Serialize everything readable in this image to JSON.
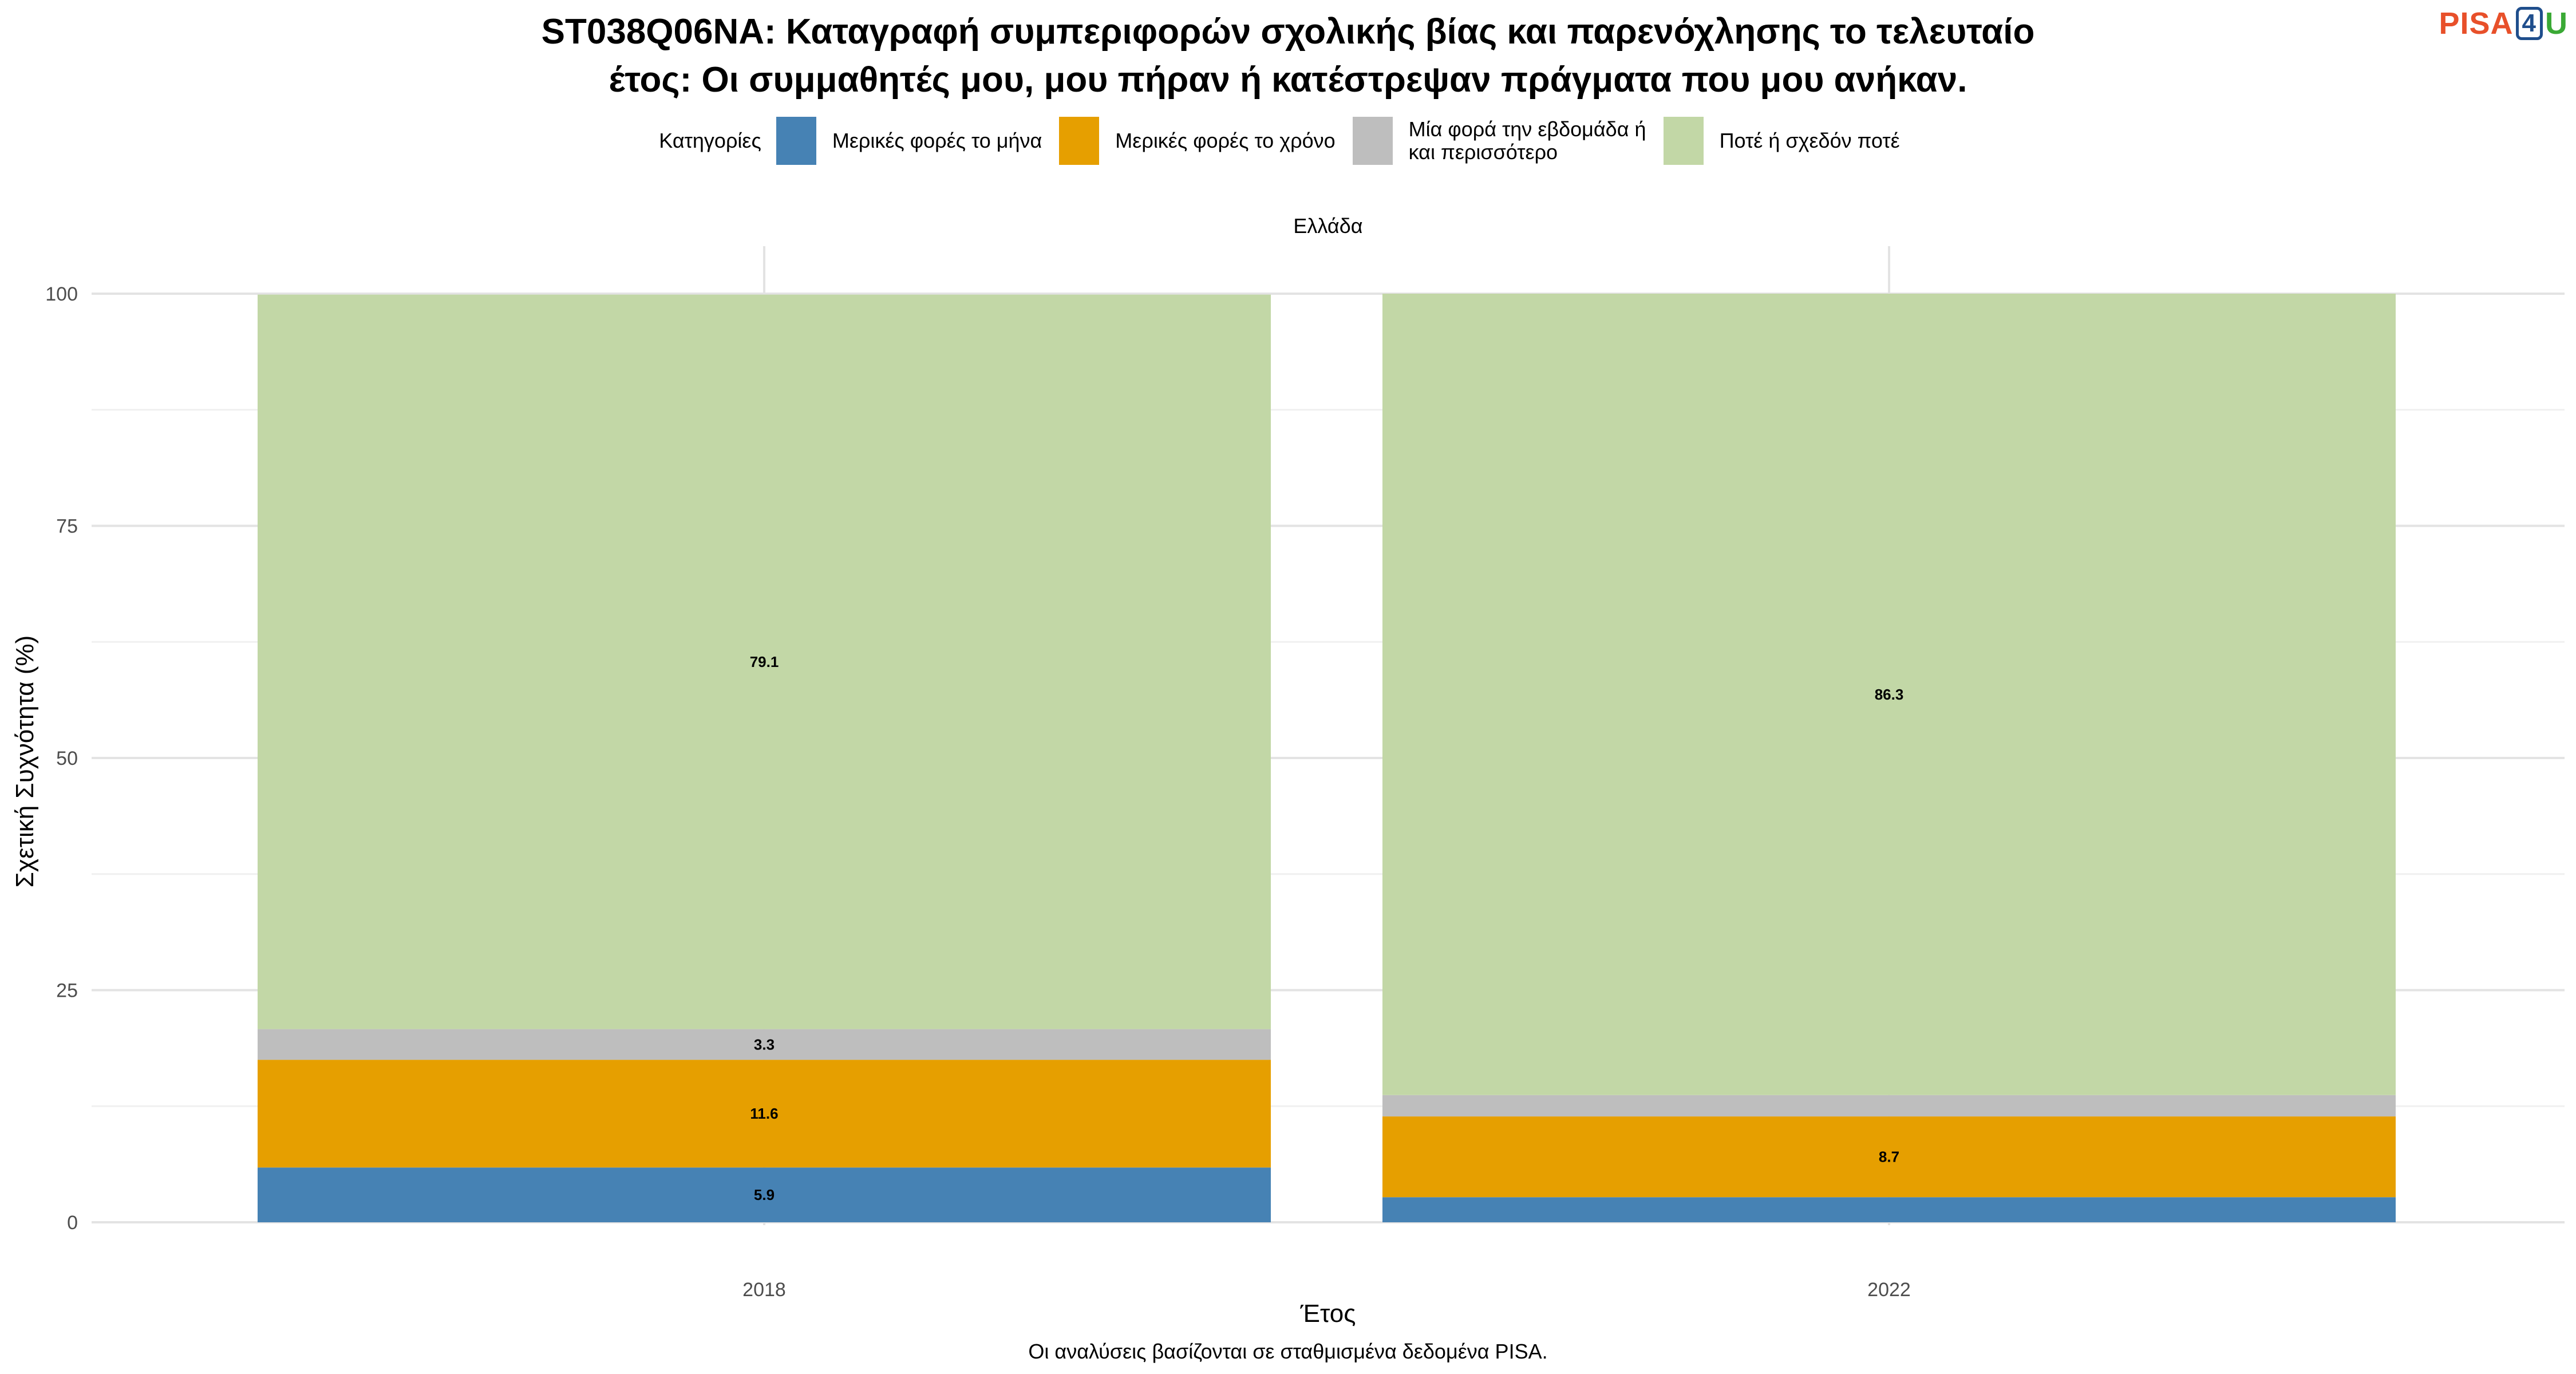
{
  "title_line1": "ST038Q06NA: Καταγραφή συμπεριφορών σχολικής βίας και παρενόχλησης το τελευταίο",
  "title_line2": "έτος: Οι συμμαθητές μου, μου πήραν ή κατέστρεψαν πράγματα που μου ανήκαν.",
  "logo": {
    "part1": "PISA",
    "part2": "4",
    "part3": "U"
  },
  "legend_title": "Κατηγορίες",
  "facet_label": "Ελλάδα",
  "caption": "Οι αναλύσεις βασίζονται σε σταθμισμένα δεδομένα PISA.",
  "chart_data": {
    "type": "bar",
    "stacked": true,
    "categories": [
      "2018",
      "2022"
    ],
    "xlabel": "Έτος",
    "ylabel": "Σχετική Συχνότητα (%)",
    "ylim": [
      0,
      100
    ],
    "yticks": [
      0,
      25,
      50,
      75,
      100
    ],
    "series": [
      {
        "name": "Μερικές φορές το μήνα",
        "color": "#4682b4",
        "values": [
          5.9,
          2.7
        ],
        "labels": [
          "5.9",
          ""
        ]
      },
      {
        "name": "Μερικές φορές το χρόνο",
        "color": "#e69f00",
        "values": [
          11.6,
          8.7
        ],
        "labels": [
          "11.6",
          "8.7"
        ]
      },
      {
        "name": "Μία φορά την εβδομάδα ή\nκαι περισσότερο",
        "color": "#bebebe",
        "values": [
          3.3,
          2.3
        ],
        "labels": [
          "3.3",
          ""
        ]
      },
      {
        "name": "Ποτέ ή σχεδόν ποτέ",
        "color": "#c2d7a6",
        "values": [
          79.1,
          86.3
        ],
        "labels": [
          "79.1",
          "86.3"
        ]
      }
    ]
  }
}
